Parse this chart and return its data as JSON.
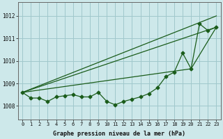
{
  "xlabel": "Graphe pression niveau de la mer (hPa)",
  "bg_color": "#cde8ea",
  "grid_color": "#a0c8cc",
  "line_color": "#1a5c1a",
  "ylim": [
    1007.4,
    1012.6
  ],
  "yticks": [
    1008,
    1009,
    1010,
    1011,
    1012
  ],
  "xlim": [
    -0.5,
    23.5
  ],
  "x_ticks": [
    0,
    1,
    2,
    3,
    4,
    5,
    6,
    7,
    8,
    9,
    10,
    11,
    12,
    13,
    14,
    15,
    16,
    17,
    18,
    19,
    20,
    21,
    22,
    23
  ],
  "series_main": [
    1008.6,
    1008.35,
    1008.35,
    1008.2,
    1008.4,
    1008.45,
    1008.5,
    1008.4,
    1008.4,
    1008.6,
    1008.2,
    1008.05,
    1008.2,
    1008.3,
    1008.4,
    1008.55,
    1008.8,
    1009.3,
    1009.5,
    1010.35,
    1009.65,
    1011.65,
    1011.35,
    1011.5
  ],
  "line1_x": [
    0,
    23
  ],
  "line1_y": [
    1008.6,
    1012.0
  ],
  "line2_x": [
    0,
    23
  ],
  "line2_y": [
    1008.6,
    1011.5
  ],
  "line3_x": [
    0,
    20,
    23
  ],
  "line3_y": [
    1008.6,
    1009.65,
    1011.5
  ]
}
